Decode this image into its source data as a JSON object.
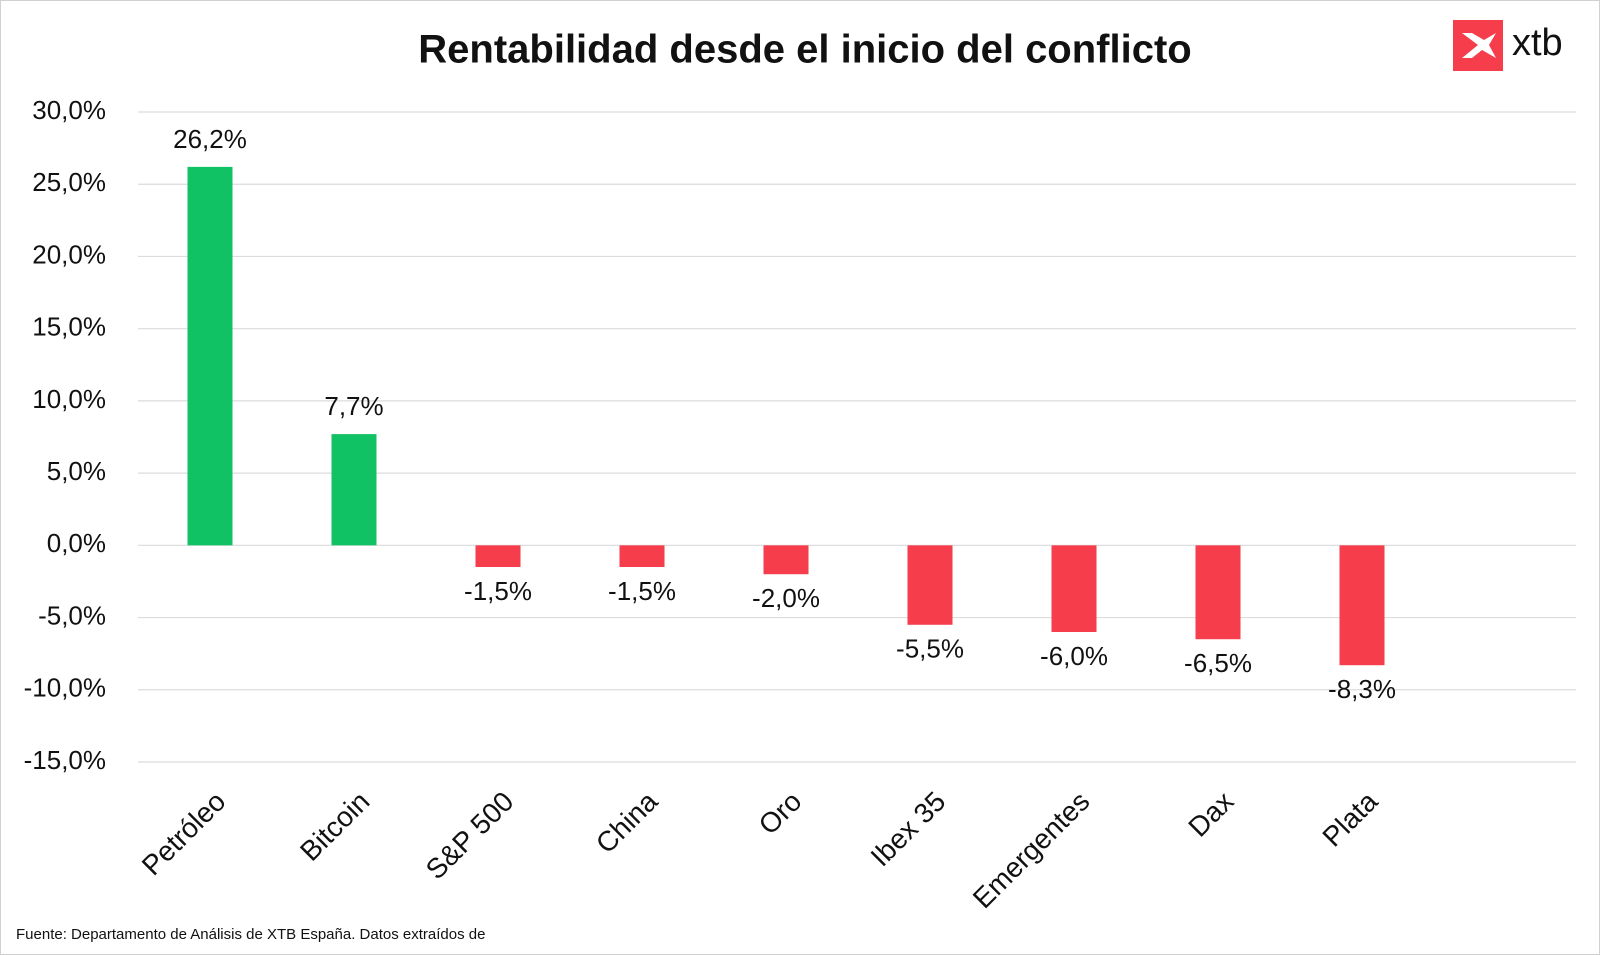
{
  "chart_data": {
    "type": "bar",
    "title": "Rentabilidad desde el inicio del conflicto",
    "categories": [
      "Petróleo",
      "Bitcoin",
      "S&P 500",
      "China",
      "Oro",
      "Ibex 35",
      "Emergentes",
      "Dax",
      "Plata"
    ],
    "values": [
      26.2,
      7.7,
      -1.5,
      -1.5,
      -2.0,
      -5.5,
      -6.0,
      -6.5,
      -8.3
    ],
    "value_labels": [
      "26,2%",
      "7,7%",
      "-1,5%",
      "-1,5%",
      "-2,0%",
      "-5,5%",
      "-6,0%",
      "-6,5%",
      "-8,3%"
    ],
    "colors": [
      "#10c264",
      "#10c264",
      "#f53d4c",
      "#f53d4c",
      "#f53d4c",
      "#f53d4c",
      "#f53d4c",
      "#f53d4c",
      "#f53d4c"
    ],
    "ylim": [
      -15,
      30
    ],
    "yticks": [
      {
        "value": 30,
        "label": "30,0%"
      },
      {
        "value": 25,
        "label": "25,0%"
      },
      {
        "value": 20,
        "label": "20,0%"
      },
      {
        "value": 15,
        "label": "15,0%"
      },
      {
        "value": 10,
        "label": "10,0%"
      },
      {
        "value": 5,
        "label": "5,0%"
      },
      {
        "value": 0,
        "label": "0,0%"
      },
      {
        "value": -5,
        "label": "-5,0%"
      },
      {
        "value": -10,
        "label": "-10,0%"
      },
      {
        "value": -15,
        "label": "-15,0%"
      }
    ],
    "grid": true,
    "source": "Fuente: Departamento de Análisis de XTB España. Datos extraídos de",
    "logo": "xtb"
  }
}
